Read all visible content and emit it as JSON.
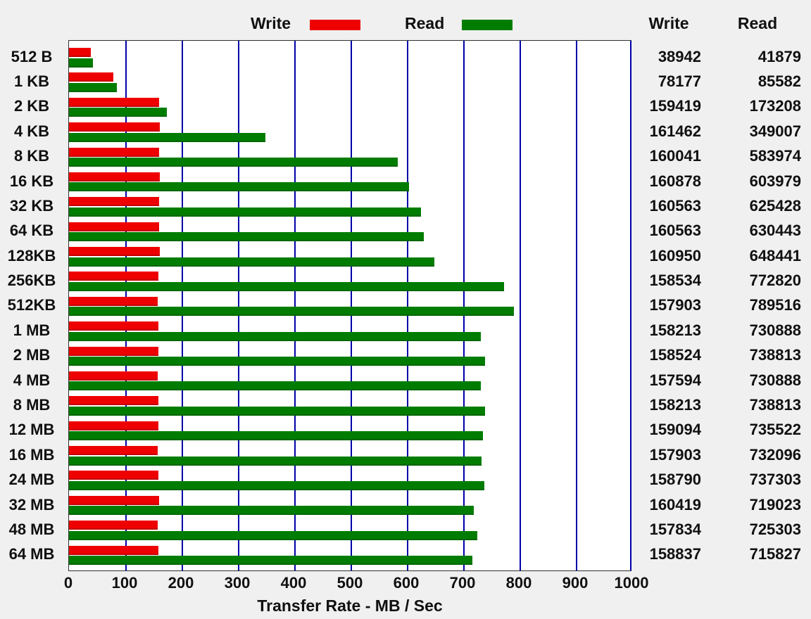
{
  "legend": {
    "write_label": "Write",
    "read_label": "Read"
  },
  "columns": {
    "write_header": "Write",
    "read_header": "Read"
  },
  "colors": {
    "write": "#ee0000",
    "read": "#007d00",
    "gridline": "#0000a8",
    "plot_background": "#ffffff",
    "page_background": "#f0f0f0"
  },
  "chart_data": {
    "type": "bar",
    "orientation": "horizontal",
    "title": "",
    "xlabel": "Transfer Rate - MB / Sec",
    "ylabel": "",
    "xlim": [
      0,
      1000
    ],
    "xticks": [
      0,
      100,
      200,
      300,
      400,
      500,
      600,
      700,
      800,
      900,
      1000
    ],
    "grid": true,
    "legend_position": "top",
    "note": "bar lengths are plotted as value/1000 (KB/s shown as numbers, axis in MB/Sec)",
    "categories": [
      "512 B",
      "1 KB",
      "2 KB",
      "4 KB",
      "8 KB",
      "16 KB",
      "32 KB",
      "64 KB",
      "128KB",
      "256KB",
      "512KB",
      "1 MB",
      "2 MB",
      "4 MB",
      "8 MB",
      "12 MB",
      "16 MB",
      "24 MB",
      "32 MB",
      "48 MB",
      "64 MB"
    ],
    "series": [
      {
        "name": "Write",
        "color": "#ee0000",
        "values": [
          38942,
          78177,
          159419,
          161462,
          160041,
          160878,
          160563,
          160563,
          160950,
          158534,
          157903,
          158213,
          158524,
          157594,
          158213,
          159094,
          157903,
          158790,
          160419,
          157834,
          158837
        ]
      },
      {
        "name": "Read",
        "color": "#007d00",
        "values": [
          41879,
          85582,
          173208,
          349007,
          583974,
          603979,
          625428,
          630443,
          648441,
          772820,
          789516,
          730888,
          738813,
          730888,
          738813,
          735522,
          732096,
          737303,
          719023,
          725303,
          715827
        ]
      }
    ]
  }
}
